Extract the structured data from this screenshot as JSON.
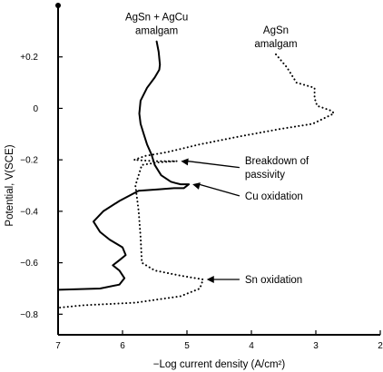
{
  "chart_data": {
    "type": "line",
    "title": "",
    "xlabel": "−Log current density (A/cm²)",
    "ylabel": "Potential, V(SCE)",
    "xlim": [
      7,
      2
    ],
    "ylim": [
      -0.88,
      0.4
    ],
    "x_reversed": true,
    "grid": false,
    "xticks": [
      {
        "value": 7,
        "label": "7"
      },
      {
        "value": 6,
        "label": "6"
      },
      {
        "value": 5,
        "label": "5"
      },
      {
        "value": 4,
        "label": "4"
      },
      {
        "value": 3,
        "label": "3"
      },
      {
        "value": 2,
        "label": "2"
      }
    ],
    "yticks": [
      {
        "value": 0.2,
        "label": "+0.2"
      },
      {
        "value": 0,
        "label": "0"
      },
      {
        "value": -0.2,
        "label": "−0.2"
      },
      {
        "value": -0.4,
        "label": "−0.4"
      },
      {
        "value": -0.6,
        "label": "−0.6"
      },
      {
        "value": -0.8,
        "label": "−0.8"
      }
    ],
    "series": [
      {
        "name": "AgSn + AgCu amalgam",
        "style": "solid",
        "label_lines": [
          "AgSn + AgCu",
          "amalgam"
        ],
        "points": [
          [
            5.47,
            0.26
          ],
          [
            5.44,
            0.22
          ],
          [
            5.42,
            0.17
          ],
          [
            5.43,
            0.15
          ],
          [
            5.5,
            0.12
          ],
          [
            5.62,
            0.08
          ],
          [
            5.72,
            0.03
          ],
          [
            5.74,
            -0.02
          ],
          [
            5.72,
            -0.06
          ],
          [
            5.67,
            -0.1
          ],
          [
            5.62,
            -0.14
          ],
          [
            5.55,
            -0.18
          ],
          [
            5.5,
            -0.22
          ],
          [
            5.4,
            -0.26
          ],
          [
            5.25,
            -0.285
          ],
          [
            5.18,
            -0.29
          ],
          [
            5.1,
            -0.295
          ],
          [
            4.97,
            -0.295
          ],
          [
            5.05,
            -0.31
          ],
          [
            5.2,
            -0.31
          ],
          [
            5.45,
            -0.315
          ],
          [
            5.75,
            -0.32
          ],
          [
            6.05,
            -0.36
          ],
          [
            6.3,
            -0.4
          ],
          [
            6.45,
            -0.44
          ],
          [
            6.35,
            -0.48
          ],
          [
            6.2,
            -0.51
          ],
          [
            6.0,
            -0.54
          ],
          [
            5.95,
            -0.57
          ],
          [
            6.05,
            -0.59
          ],
          [
            6.15,
            -0.61
          ],
          [
            6.05,
            -0.63
          ],
          [
            5.97,
            -0.66
          ],
          [
            6.05,
            -0.685
          ],
          [
            6.35,
            -0.7
          ],
          [
            7.0,
            -0.705
          ]
        ]
      },
      {
        "name": "AgSn amalgam",
        "style": "dotted",
        "label_lines": [
          "AgSn",
          "amalgam"
        ],
        "points": [
          [
            3.62,
            0.21
          ],
          [
            3.45,
            0.16
          ],
          [
            3.3,
            0.1
          ],
          [
            3.02,
            0.08
          ],
          [
            3.02,
            0.04
          ],
          [
            2.98,
            0.01
          ],
          [
            2.75,
            -0.01
          ],
          [
            2.72,
            -0.02
          ],
          [
            3.05,
            -0.06
          ],
          [
            3.55,
            -0.08
          ],
          [
            4.2,
            -0.11
          ],
          [
            4.8,
            -0.14
          ],
          [
            5.3,
            -0.17
          ],
          [
            5.65,
            -0.185
          ],
          [
            5.82,
            -0.2
          ],
          [
            5.5,
            -0.205
          ],
          [
            5.15,
            -0.205
          ],
          [
            5.45,
            -0.21
          ],
          [
            5.7,
            -0.22
          ],
          [
            5.8,
            -0.3
          ],
          [
            5.75,
            -0.4
          ],
          [
            5.72,
            -0.5
          ],
          [
            5.7,
            -0.6
          ],
          [
            5.5,
            -0.63
          ],
          [
            5.1,
            -0.65
          ],
          [
            4.75,
            -0.665
          ],
          [
            4.8,
            -0.7
          ],
          [
            5.1,
            -0.73
          ],
          [
            5.8,
            -0.755
          ],
          [
            6.6,
            -0.765
          ],
          [
            7.0,
            -0.775
          ]
        ]
      }
    ],
    "annotations": [
      {
        "lines": [
          "Breakdown of",
          "passivity"
        ],
        "target": [
          5.15,
          -0.205
        ],
        "text_at": [
          4.1,
          -0.23
        ]
      },
      {
        "lines": [
          "Cu oxidation"
        ],
        "target": [
          4.97,
          -0.295
        ],
        "text_at": [
          4.1,
          -0.34
        ]
      },
      {
        "lines": [
          "Sn oxidation"
        ],
        "target": [
          4.75,
          -0.665
        ],
        "text_at": [
          4.1,
          -0.665
        ]
      }
    ]
  }
}
